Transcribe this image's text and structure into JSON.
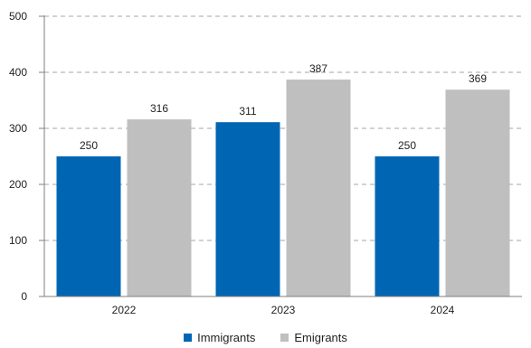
{
  "chart_data": {
    "type": "bar",
    "categories": [
      "2022",
      "2023",
      "2024"
    ],
    "series": [
      {
        "name": "Immigrants",
        "values": [
          250,
          311,
          250
        ],
        "color": "#0066b3"
      },
      {
        "name": "Emigrants",
        "values": [
          316,
          387,
          369
        ],
        "color": "#bfbfbf"
      }
    ],
    "ylim": [
      0,
      500
    ],
    "yticks": [
      "0",
      "100",
      "200",
      "300",
      "400",
      "500"
    ],
    "grid": true,
    "legend_position": "bottom",
    "title": "",
    "xlabel": "",
    "ylabel": ""
  }
}
